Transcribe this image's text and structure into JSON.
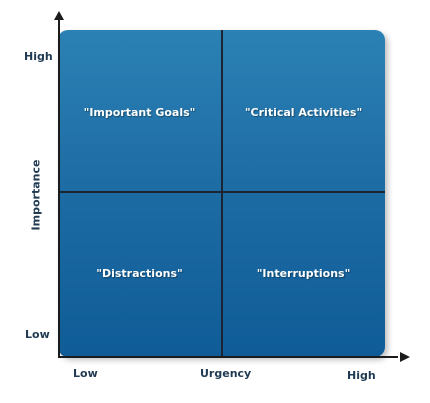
{
  "axes": {
    "y_title": "Importance",
    "y_high": "High",
    "y_low": "Low",
    "x_low": "Low",
    "x_title": "Urgency",
    "x_high": "High"
  },
  "quadrants": {
    "top_left": "\"Important Goals\"",
    "top_right": "\"Critical Activities\"",
    "bottom_left": "\"Distractions\"",
    "bottom_right": "\"Interruptions\""
  },
  "colors": {
    "panel_top": "#2b81b4",
    "panel_bottom": "#0f5c98",
    "axis": "#1b1b1b",
    "label_text": "#1f3a52"
  }
}
